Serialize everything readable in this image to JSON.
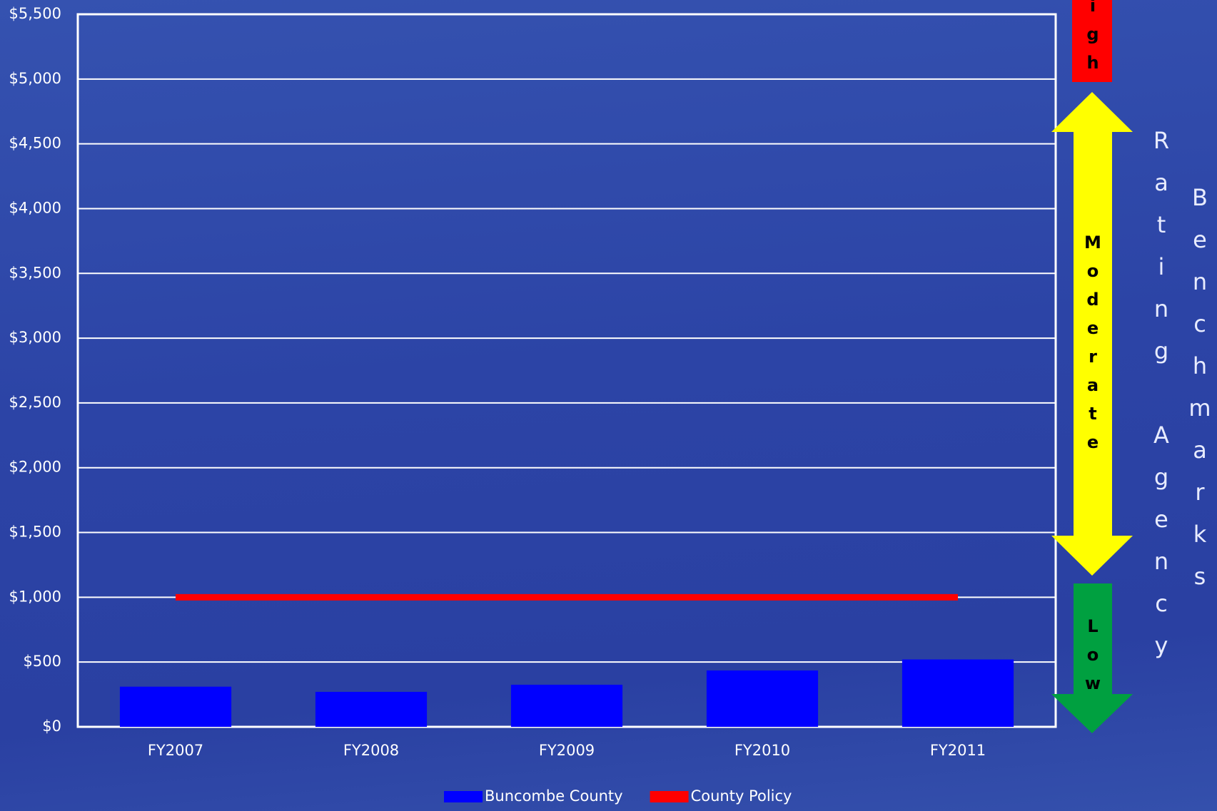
{
  "chart_data": {
    "type": "bar",
    "categories": [
      "FY2007",
      "FY2008",
      "FY2009",
      "FY2010",
      "FY2011"
    ],
    "series": [
      {
        "name": "Buncombe County",
        "type": "bar",
        "color": "#0000ff",
        "values": [
          310,
          270,
          325,
          435,
          520
        ]
      },
      {
        "name": "County Policy",
        "type": "line",
        "color": "#ff0000",
        "values": [
          1000,
          1000,
          1000,
          1000,
          1000
        ]
      }
    ],
    "ylim": [
      0,
      5500
    ],
    "yticks": [
      {
        "value": 0,
        "label": "$0"
      },
      {
        "value": 500,
        "label": "$500"
      },
      {
        "value": 1000,
        "label": "$1,000"
      },
      {
        "value": 1500,
        "label": "$1,500"
      },
      {
        "value": 2000,
        "label": "$2,000"
      },
      {
        "value": 2500,
        "label": "$2,500"
      },
      {
        "value": 3000,
        "label": "$3,000"
      },
      {
        "value": 3500,
        "label": "$3,500"
      },
      {
        "value": 4000,
        "label": "$4,000"
      },
      {
        "value": 4500,
        "label": "$4,500"
      },
      {
        "value": 5000,
        "label": "$5,000"
      },
      {
        "value": 5500,
        "label": "$5,500"
      }
    ],
    "grid": true,
    "annotations": {
      "high": "High",
      "moderate": "Moderate",
      "low": "Low",
      "rating_agency": "Rating Agency",
      "benchmarks": "Benchmarks"
    }
  }
}
